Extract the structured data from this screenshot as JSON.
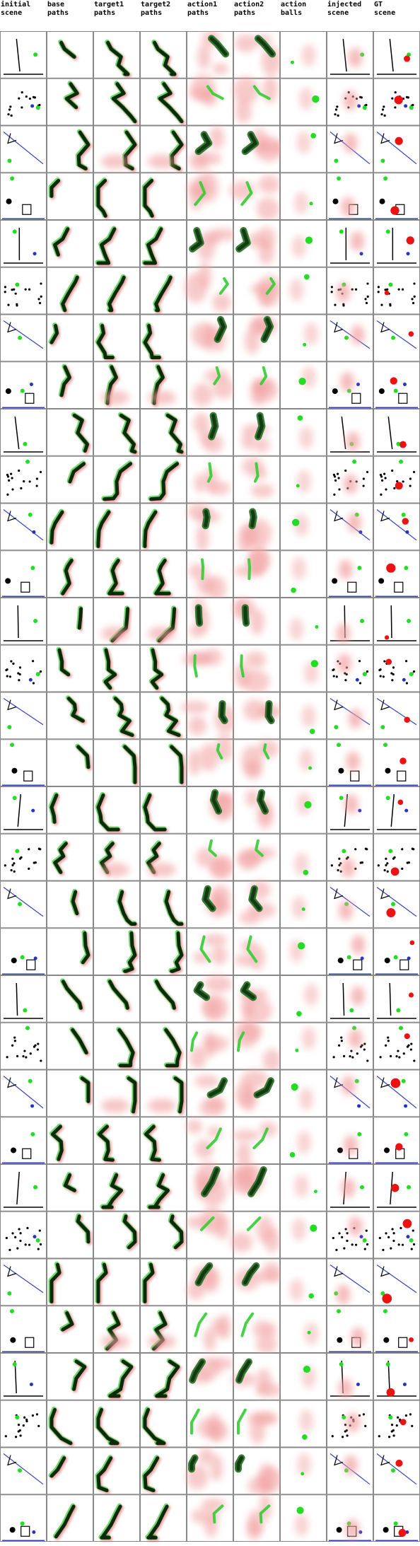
{
  "columns": [
    {
      "key": "initial_scene",
      "label": "initial\nscene"
    },
    {
      "key": "base_paths",
      "label": "base\npaths"
    },
    {
      "key": "target1_paths",
      "label": "target1\npaths"
    },
    {
      "key": "target2_paths",
      "label": "target2\npaths"
    },
    {
      "key": "action1_paths",
      "label": "action1\npaths"
    },
    {
      "key": "action2_paths",
      "label": "action2\npaths"
    },
    {
      "key": "action_balls",
      "label": "action\nballs"
    },
    {
      "key": "injected_scene",
      "label": "injected\nscene"
    },
    {
      "key": "gt_scene",
      "label": "GT\nscene"
    }
  ],
  "row_count": 32,
  "colors": {
    "grid_line": "#888888",
    "scene_object": "#000000",
    "green_ball": "#22dd22",
    "blue_ball": "#2233cc",
    "red_ball": "#ee1111",
    "boundary": "#3344bb",
    "path_dark": "#0b2a0b",
    "path_green": "#33cc33",
    "heat_red": "#f2a0a0"
  }
}
